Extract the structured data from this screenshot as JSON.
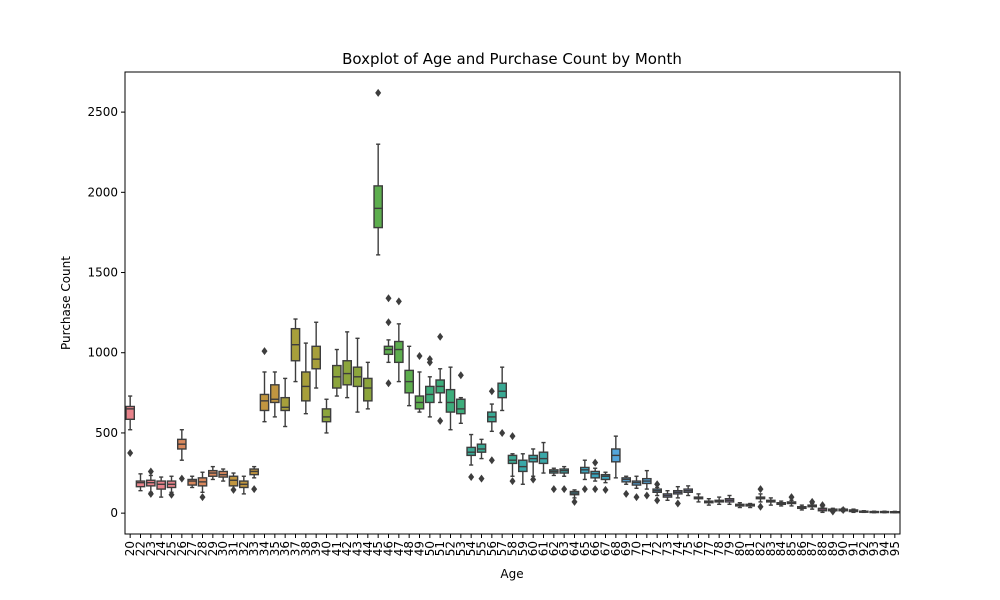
{
  "chart_data": {
    "type": "boxplot",
    "title": "Boxplot of Age and Purchase Count by Month",
    "xlabel": "Age",
    "ylabel": "Purchase Count",
    "ylim": [
      -130,
      2750
    ],
    "yticks": [
      0,
      500,
      1000,
      1500,
      2000,
      2500
    ],
    "grid": false,
    "legend": "none",
    "box_stats_order": [
      "q1",
      "median",
      "q3",
      "whisker_low",
      "whisker_high"
    ],
    "categories": [
      "20",
      "22",
      "23",
      "24",
      "25",
      "26",
      "27",
      "28",
      "29",
      "30",
      "31",
      "32",
      "33",
      "34",
      "35",
      "36",
      "37",
      "38",
      "39",
      "40",
      "41",
      "42",
      "43",
      "44",
      "45",
      "46",
      "47",
      "48",
      "49",
      "50",
      "51",
      "52",
      "53",
      "54",
      "55",
      "56",
      "57",
      "58",
      "59",
      "60",
      "61",
      "62",
      "63",
      "64",
      "65",
      "66",
      "67",
      "68",
      "69",
      "70",
      "71",
      "72",
      "73",
      "74",
      "75",
      "76",
      "77",
      "78",
      "79",
      "80",
      "81",
      "82",
      "83",
      "84",
      "85",
      "86",
      "87",
      "88",
      "89",
      "90",
      "91",
      "92",
      "93",
      "94",
      "95"
    ],
    "boxes": [
      [
        585,
        650,
        665,
        520,
        730
      ],
      [
        165,
        190,
        200,
        140,
        245
      ],
      [
        170,
        190,
        205,
        130,
        235
      ],
      [
        150,
        180,
        200,
        100,
        225
      ],
      [
        160,
        180,
        200,
        130,
        230
      ],
      [
        400,
        430,
        460,
        330,
        520
      ],
      [
        175,
        200,
        210,
        160,
        230
      ],
      [
        170,
        195,
        220,
        130,
        255
      ],
      [
        230,
        250,
        265,
        210,
        290
      ],
      [
        225,
        240,
        260,
        200,
        275
      ],
      [
        170,
        205,
        230,
        150,
        250
      ],
      [
        160,
        180,
        200,
        120,
        230
      ],
      [
        240,
        260,
        275,
        220,
        290
      ],
      [
        640,
        700,
        740,
        570,
        880
      ],
      [
        690,
        710,
        800,
        600,
        880
      ],
      [
        640,
        660,
        720,
        540,
        840
      ],
      [
        950,
        1050,
        1150,
        820,
        1210
      ],
      [
        700,
        790,
        880,
        620,
        1060
      ],
      [
        900,
        960,
        1040,
        780,
        1190
      ],
      [
        570,
        600,
        650,
        500,
        710
      ],
      [
        780,
        850,
        920,
        730,
        1020
      ],
      [
        800,
        870,
        950,
        720,
        1130
      ],
      [
        790,
        850,
        910,
        630,
        1090
      ],
      [
        700,
        780,
        840,
        650,
        940
      ],
      [
        1780,
        1900,
        2040,
        1610,
        2300
      ],
      [
        990,
        1020,
        1040,
        940,
        1080
      ],
      [
        940,
        1020,
        1070,
        820,
        1180
      ],
      [
        750,
        820,
        890,
        670,
        1040
      ],
      [
        650,
        690,
        730,
        630,
        880
      ],
      [
        690,
        740,
        790,
        600,
        850
      ],
      [
        750,
        790,
        830,
        690,
        900
      ],
      [
        630,
        690,
        770,
        520,
        910
      ],
      [
        620,
        650,
        710,
        560,
        720
      ],
      [
        360,
        380,
        410,
        300,
        490
      ],
      [
        380,
        400,
        430,
        340,
        460
      ],
      [
        570,
        600,
        630,
        510,
        680
      ],
      [
        720,
        760,
        810,
        640,
        910
      ],
      [
        310,
        330,
        360,
        230,
        370
      ],
      [
        260,
        290,
        330,
        180,
        370
      ],
      [
        320,
        340,
        360,
        230,
        400
      ],
      [
        310,
        340,
        380,
        250,
        440
      ],
      [
        250,
        260,
        270,
        235,
        280
      ],
      [
        250,
        265,
        275,
        230,
        290
      ],
      [
        115,
        125,
        135,
        95,
        145
      ],
      [
        250,
        270,
        285,
        210,
        330
      ],
      [
        220,
        245,
        260,
        200,
        280
      ],
      [
        210,
        230,
        240,
        190,
        255
      ],
      [
        320,
        360,
        400,
        220,
        480
      ],
      [
        195,
        210,
        220,
        180,
        230
      ],
      [
        175,
        190,
        200,
        155,
        230
      ],
      [
        185,
        200,
        215,
        150,
        265
      ],
      [
        130,
        140,
        150,
        110,
        160
      ],
      [
        100,
        110,
        120,
        80,
        140
      ],
      [
        120,
        130,
        140,
        95,
        165
      ],
      [
        130,
        140,
        150,
        110,
        170
      ],
      [
        90,
        95,
        100,
        70,
        120
      ],
      [
        65,
        70,
        75,
        50,
        90
      ],
      [
        70,
        75,
        80,
        55,
        100
      ],
      [
        70,
        80,
        90,
        55,
        110
      ],
      [
        45,
        50,
        55,
        35,
        65
      ],
      [
        45,
        50,
        55,
        35,
        60
      ],
      [
        90,
        95,
        100,
        70,
        120
      ],
      [
        70,
        75,
        80,
        50,
        95
      ],
      [
        55,
        60,
        65,
        45,
        75
      ],
      [
        60,
        65,
        70,
        45,
        80
      ],
      [
        30,
        35,
        40,
        20,
        50
      ],
      [
        40,
        45,
        50,
        25,
        60
      ],
      [
        15,
        20,
        30,
        5,
        40
      ],
      [
        15,
        20,
        25,
        10,
        30
      ],
      [
        15,
        20,
        25,
        10,
        30
      ],
      [
        10,
        15,
        20,
        5,
        25
      ],
      [
        8,
        10,
        12,
        5,
        15
      ],
      [
        5,
        8,
        10,
        3,
        12
      ],
      [
        5,
        8,
        10,
        3,
        12
      ],
      [
        5,
        7,
        9,
        3,
        11
      ]
    ],
    "outliers": [
      [
        0,
        375
      ],
      [
        2,
        120
      ],
      [
        2,
        260
      ],
      [
        4,
        115
      ],
      [
        5,
        215
      ],
      [
        7,
        100
      ],
      [
        10,
        145
      ],
      [
        12,
        150
      ],
      [
        13,
        1010
      ],
      [
        24,
        2620
      ],
      [
        25,
        1340
      ],
      [
        25,
        1190
      ],
      [
        25,
        810
      ],
      [
        26,
        1320
      ],
      [
        28,
        980
      ],
      [
        29,
        960
      ],
      [
        29,
        940
      ],
      [
        30,
        1100
      ],
      [
        30,
        575
      ],
      [
        32,
        860
      ],
      [
        33,
        225
      ],
      [
        34,
        215
      ],
      [
        35,
        330
      ],
      [
        35,
        760
      ],
      [
        36,
        500
      ],
      [
        37,
        200
      ],
      [
        37,
        480
      ],
      [
        39,
        210
      ],
      [
        41,
        150
      ],
      [
        42,
        150
      ],
      [
        43,
        70
      ],
      [
        44,
        150
      ],
      [
        45,
        150
      ],
      [
        45,
        315
      ],
      [
        46,
        145
      ],
      [
        48,
        120
      ],
      [
        49,
        100
      ],
      [
        50,
        110
      ],
      [
        51,
        180
      ],
      [
        51,
        80
      ],
      [
        53,
        60
      ],
      [
        61,
        150
      ],
      [
        61,
        40
      ],
      [
        64,
        100
      ],
      [
        66,
        70
      ],
      [
        67,
        50
      ],
      [
        68,
        10
      ],
      [
        69,
        20
      ]
    ],
    "palette": [
      "#e8838b",
      "#d9885d",
      "#c19640",
      "#a79f3b",
      "#8ca53c",
      "#5dae4e",
      "#3dad7b",
      "#3aa994",
      "#3aa7a8",
      "#3ba6bf",
      "#54a6dc",
      "#8d9ee8",
      "#b990e6",
      "#d984de",
      "#e57ac4",
      "#e87da8"
    ]
  }
}
